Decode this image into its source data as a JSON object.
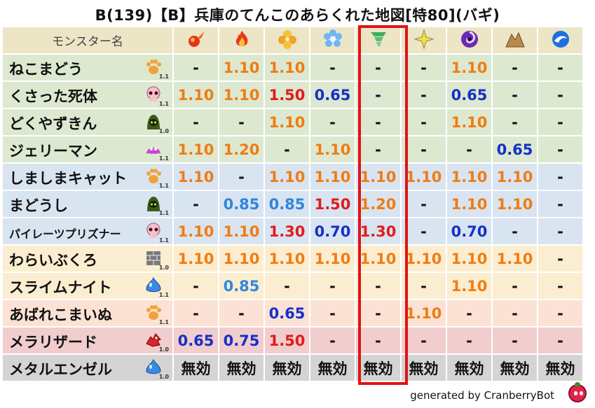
{
  "title": "B(139)【B】兵庫のてんこのあらくれた地図[特80](バギ)",
  "header": {
    "name_label": "モンスター名",
    "elements": [
      {
        "icon": "fire-orb-icon"
      },
      {
        "icon": "flame-icon"
      },
      {
        "icon": "clover-burst-icon"
      },
      {
        "icon": "ice-flower-icon"
      },
      {
        "icon": "tornado-icon"
      },
      {
        "icon": "spark-star-icon"
      },
      {
        "icon": "dark-swirl-icon"
      },
      {
        "icon": "earth-rocks-icon"
      },
      {
        "icon": "water-wave-icon"
      }
    ]
  },
  "rows": [
    {
      "name": "ねこまどう",
      "icon": "paw-icon",
      "tag": "1.1",
      "color": "green",
      "values": [
        "-",
        "1.10",
        "1.10",
        "-",
        "-",
        "-",
        "1.10",
        "-",
        "-"
      ]
    },
    {
      "name": "くさった死体",
      "icon": "skull-icon",
      "tag": "1.1",
      "color": "green",
      "values": [
        "1.10",
        "1.10",
        "1.50",
        "0.65",
        "-",
        "-",
        "0.65",
        "-",
        "-"
      ]
    },
    {
      "name": "どくやずきん",
      "icon": "hood-icon",
      "tag": "1.0",
      "color": "green",
      "values": [
        "-",
        "-",
        "1.10",
        "-",
        "-",
        "-",
        "1.10",
        "-",
        "-"
      ]
    },
    {
      "name": "ジェリーマン",
      "icon": "jelly-icon",
      "tag": "1.1",
      "color": "green",
      "values": [
        "1.10",
        "1.20",
        "-",
        "1.10",
        "-",
        "-",
        "-",
        "0.65",
        "-"
      ]
    },
    {
      "name": "しましまキャット",
      "icon": "paw-icon",
      "tag": "1.1",
      "color": "blue",
      "values": [
        "1.10",
        "-",
        "1.10",
        "1.10",
        "1.10",
        "1.10",
        "1.10",
        "1.10",
        "-"
      ]
    },
    {
      "name": "まどうし",
      "icon": "hood-icon",
      "tag": "1.1",
      "color": "blue",
      "values": [
        "-",
        "0.85",
        "0.85",
        "1.50",
        "1.20",
        "-",
        "1.10",
        "1.10",
        "-"
      ]
    },
    {
      "name": "パイレーツプリズナー",
      "icon": "skull-icon",
      "tag": "1.1",
      "color": "blue",
      "small": true,
      "values": [
        "1.10",
        "1.10",
        "1.30",
        "0.70",
        "1.30",
        "-",
        "0.70",
        "-",
        "-"
      ]
    },
    {
      "name": "わらいぶくろ",
      "icon": "brick-icon",
      "tag": "1.0",
      "color": "tan",
      "values": [
        "1.10",
        "1.10",
        "1.10",
        "1.10",
        "1.10",
        "1.10",
        "1.10",
        "1.10",
        "-"
      ]
    },
    {
      "name": "スライムナイト",
      "icon": "slime-icon",
      "tag": "1.1",
      "color": "tan",
      "values": [
        "-",
        "0.85",
        "-",
        "-",
        "-",
        "-",
        "1.10",
        "-",
        "-"
      ]
    },
    {
      "name": "あばれこまいぬ",
      "icon": "paw-icon",
      "tag": "1.1",
      "color": "peach",
      "values": [
        "-",
        "-",
        "0.65",
        "-",
        "-",
        "1.10",
        "-",
        "-",
        "-"
      ]
    },
    {
      "name": "メラリザード",
      "icon": "dragon-icon",
      "tag": "1.0",
      "color": "red",
      "values": [
        "0.65",
        "0.75",
        "1.50",
        "-",
        "-",
        "-",
        "-",
        "-",
        "-"
      ]
    },
    {
      "name": "メタルエンゼル",
      "icon": "slime-icon",
      "tag": "1.0",
      "color": "gray",
      "values": [
        "無効",
        "無効",
        "無効",
        "無効",
        "無効",
        "無効",
        "無効",
        "無効",
        "無効"
      ]
    }
  ],
  "colors": {
    "up": "#f07c12",
    "big": "#e21b1b",
    "down": "#1530c8",
    "mid": "#2f86de",
    "highlight": "#e01414"
  },
  "footer": "generated by CranberryBot"
}
